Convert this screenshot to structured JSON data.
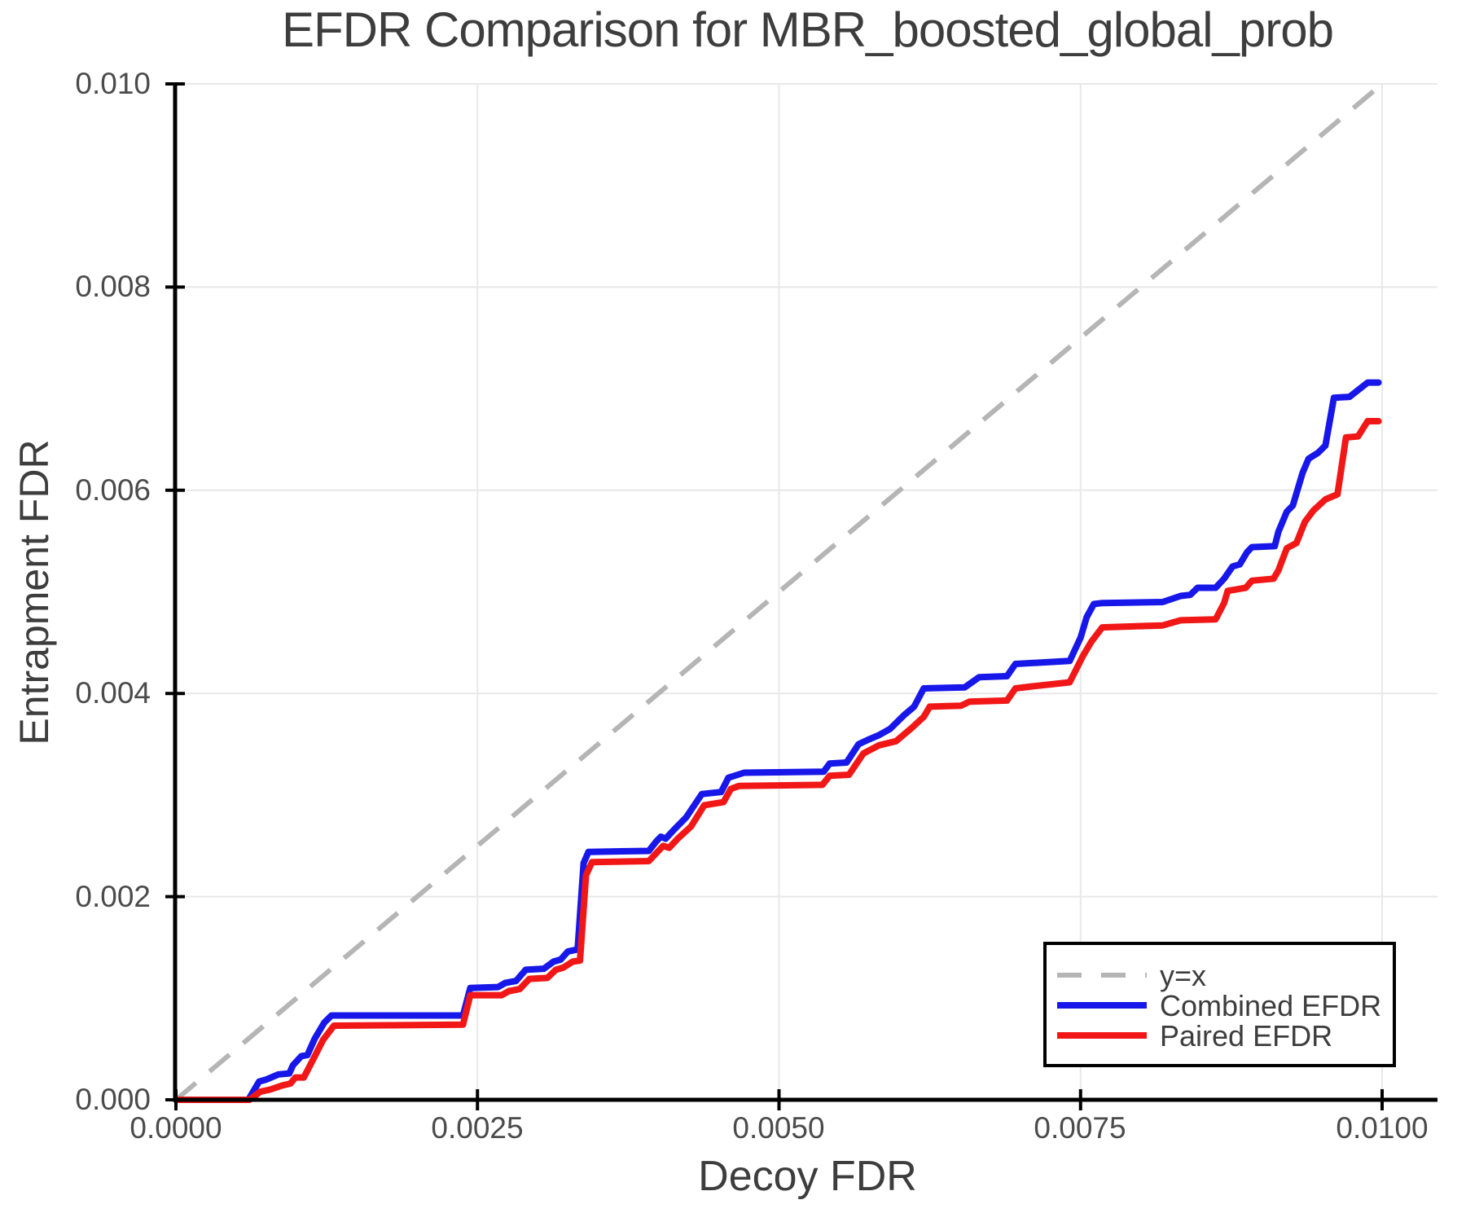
{
  "chart_data": {
    "type": "line",
    "title": "EFDR Comparison for MBR_boosted_global_prob",
    "xlabel": "Decoy FDR",
    "ylabel": "Entrapment FDR",
    "xlim": [
      0,
      0.01047
    ],
    "ylim": [
      0,
      0.01
    ],
    "grid": true,
    "background": "#ffffff",
    "grid_color": "#e8e8e8",
    "axis_color": "#000000",
    "text_color": "#3d3d3d",
    "x_tick_values": [
      0,
      0.0025,
      0.005,
      0.0075,
      0.01
    ],
    "x_tick_labels": [
      "0.0000",
      "0.0025",
      "0.0050",
      "0.0075",
      "0.0100"
    ],
    "y_tick_values": [
      0.01,
      0.008,
      0.006,
      0.004,
      0.002,
      0
    ],
    "y_tick_labels": [
      "0.010",
      "0.008",
      "0.006",
      "0.004",
      "0.002",
      "0.000"
    ],
    "reference_line": {
      "label": "y=x",
      "from": [
        0,
        0
      ],
      "to": [
        0.01,
        0.01
      ],
      "color": "#b5b5b5",
      "dashed": true
    },
    "legend": {
      "position": "bottom-right",
      "entries": [
        {
          "label": "y=x",
          "color": "#b5b5b5",
          "dashed": true
        },
        {
          "label": "Combined EFDR",
          "color": "#1717ea",
          "dashed": false
        },
        {
          "label": "Paired EFDR",
          "color": "#f21717",
          "dashed": false
        }
      ]
    },
    "series": [
      {
        "name": "Combined EFDR",
        "color": "#1717ea",
        "points": [
          [
            0,
            0
          ],
          [
            0.0006,
            0
          ],
          [
            0.00069,
            0.00018
          ],
          [
            0.00075,
            0.0002
          ],
          [
            0.00085,
            0.00025
          ],
          [
            0.00094,
            0.00026
          ],
          [
            0.00097,
            0.00034
          ],
          [
            0.00104,
            0.00043
          ],
          [
            0.00109,
            0.00044
          ],
          [
            0.00115,
            0.0006
          ],
          [
            0.00123,
            0.00076
          ],
          [
            0.00129,
            0.00083
          ],
          [
            0.00238,
            0.00083
          ],
          [
            0.00244,
            0.0011
          ],
          [
            0.00267,
            0.00111
          ],
          [
            0.00273,
            0.00115
          ],
          [
            0.00282,
            0.00117
          ],
          [
            0.0029,
            0.00128
          ],
          [
            0.00305,
            0.00129
          ],
          [
            0.00313,
            0.00136
          ],
          [
            0.00319,
            0.00138
          ],
          [
            0.00325,
            0.00146
          ],
          [
            0.00333,
            0.00148
          ],
          [
            0.00338,
            0.00233
          ],
          [
            0.00342,
            0.00244
          ],
          [
            0.00392,
            0.00245
          ],
          [
            0.00398,
            0.00254
          ],
          [
            0.00402,
            0.00259
          ],
          [
            0.00406,
            0.00257
          ],
          [
            0.00413,
            0.00266
          ],
          [
            0.00423,
            0.00278
          ],
          [
            0.00436,
            0.00301
          ],
          [
            0.00452,
            0.00303
          ],
          [
            0.00458,
            0.00317
          ],
          [
            0.00471,
            0.00322
          ],
          [
            0.00537,
            0.00323
          ],
          [
            0.00542,
            0.00331
          ],
          [
            0.00556,
            0.00332
          ],
          [
            0.00566,
            0.0035
          ],
          [
            0.00575,
            0.00355
          ],
          [
            0.00583,
            0.00359
          ],
          [
            0.00592,
            0.00365
          ],
          [
            0.00604,
            0.00379
          ],
          [
            0.00612,
            0.00387
          ],
          [
            0.0062,
            0.00405
          ],
          [
            0.00654,
            0.00406
          ],
          [
            0.00666,
            0.00416
          ],
          [
            0.00689,
            0.00417
          ],
          [
            0.00696,
            0.00429
          ],
          [
            0.00741,
            0.00432
          ],
          [
            0.0075,
            0.00455
          ],
          [
            0.00755,
            0.00475
          ],
          [
            0.00761,
            0.00488
          ],
          [
            0.00768,
            0.00489
          ],
          [
            0.00818,
            0.0049
          ],
          [
            0.00833,
            0.00496
          ],
          [
            0.00841,
            0.00497
          ],
          [
            0.00847,
            0.00504
          ],
          [
            0.00862,
            0.00504
          ],
          [
            0.00869,
            0.00513
          ],
          [
            0.00876,
            0.00525
          ],
          [
            0.00882,
            0.00527
          ],
          [
            0.00888,
            0.00539
          ],
          [
            0.00892,
            0.00544
          ],
          [
            0.00911,
            0.00545
          ],
          [
            0.00914,
            0.00559
          ],
          [
            0.00921,
            0.00579
          ],
          [
            0.00926,
            0.00585
          ],
          [
            0.00934,
            0.00617
          ],
          [
            0.00939,
            0.00631
          ],
          [
            0.00947,
            0.00637
          ],
          [
            0.00953,
            0.00644
          ],
          [
            0.0096,
            0.00691
          ],
          [
            0.00973,
            0.00692
          ],
          [
            0.00988,
            0.00706
          ],
          [
            0.00997,
            0.00706
          ]
        ]
      },
      {
        "name": "Paired EFDR",
        "color": "#f21717",
        "points": [
          [
            0,
            0
          ],
          [
            0.00061,
            0
          ],
          [
            0.0007,
            8e-05
          ],
          [
            0.00078,
            0.0001
          ],
          [
            0.00088,
            0.00014
          ],
          [
            0.00095,
            0.00016
          ],
          [
            0.00099,
            0.00022
          ],
          [
            0.00106,
            0.00022
          ],
          [
            0.00113,
            0.00038
          ],
          [
            0.00122,
            0.00059
          ],
          [
            0.00131,
            0.00073
          ],
          [
            0.00238,
            0.00074
          ],
          [
            0.00244,
            0.00103
          ],
          [
            0.0027,
            0.00103
          ],
          [
            0.00276,
            0.00107
          ],
          [
            0.00285,
            0.00109
          ],
          [
            0.00293,
            0.00119
          ],
          [
            0.00308,
            0.0012
          ],
          [
            0.00315,
            0.00128
          ],
          [
            0.00321,
            0.0013
          ],
          [
            0.00329,
            0.00136
          ],
          [
            0.00335,
            0.00137
          ],
          [
            0.0034,
            0.00221
          ],
          [
            0.00345,
            0.00234
          ],
          [
            0.00392,
            0.00235
          ],
          [
            0.004,
            0.00245
          ],
          [
            0.00404,
            0.0025
          ],
          [
            0.00409,
            0.00248
          ],
          [
            0.00416,
            0.00257
          ],
          [
            0.00427,
            0.00269
          ],
          [
            0.00438,
            0.0029
          ],
          [
            0.00454,
            0.00293
          ],
          [
            0.0046,
            0.00306
          ],
          [
            0.00467,
            0.00309
          ],
          [
            0.00536,
            0.0031
          ],
          [
            0.00542,
            0.00319
          ],
          [
            0.00558,
            0.0032
          ],
          [
            0.0057,
            0.00341
          ],
          [
            0.00583,
            0.00349
          ],
          [
            0.00597,
            0.00353
          ],
          [
            0.0061,
            0.00366
          ],
          [
            0.0062,
            0.00377
          ],
          [
            0.00625,
            0.00387
          ],
          [
            0.00651,
            0.00388
          ],
          [
            0.00658,
            0.00392
          ],
          [
            0.00689,
            0.00393
          ],
          [
            0.00696,
            0.00405
          ],
          [
            0.0071,
            0.00407
          ],
          [
            0.00741,
            0.00411
          ],
          [
            0.00752,
            0.00437
          ],
          [
            0.00759,
            0.00451
          ],
          [
            0.00768,
            0.00465
          ],
          [
            0.00818,
            0.00467
          ],
          [
            0.00833,
            0.00472
          ],
          [
            0.00862,
            0.00473
          ],
          [
            0.00869,
            0.00489
          ],
          [
            0.00872,
            0.00501
          ],
          [
            0.00887,
            0.00504
          ],
          [
            0.00892,
            0.00511
          ],
          [
            0.0091,
            0.00513
          ],
          [
            0.00914,
            0.00521
          ],
          [
            0.00921,
            0.00543
          ],
          [
            0.00929,
            0.00548
          ],
          [
            0.00936,
            0.00569
          ],
          [
            0.00943,
            0.0058
          ],
          [
            0.00953,
            0.00591
          ],
          [
            0.00963,
            0.00596
          ],
          [
            0.0097,
            0.00652
          ],
          [
            0.0098,
            0.00653
          ],
          [
            0.00988,
            0.00668
          ],
          [
            0.00997,
            0.00668
          ]
        ]
      }
    ]
  }
}
